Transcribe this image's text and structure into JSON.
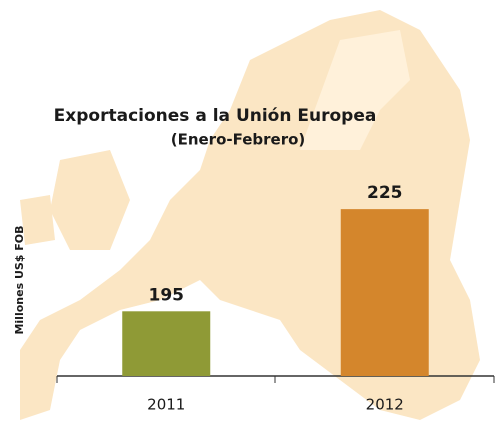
{
  "chart_data": {
    "type": "bar",
    "title": "Exportaciones a la Unión Europea",
    "subtitle": "(Enero-Febrero)",
    "y_label": "Millones US$ FOB",
    "categories": [
      "2011",
      "2012"
    ],
    "values": [
      195,
      225
    ],
    "colors": [
      "#8f9a36",
      "#d4862c"
    ],
    "ylim": [
      176,
      250
    ]
  }
}
